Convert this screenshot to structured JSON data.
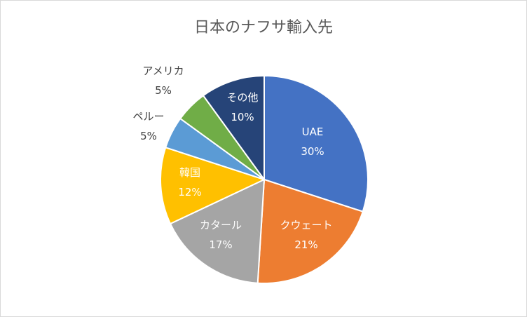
{
  "chart_data": {
    "type": "pie",
    "title": "日本のナフサ輸入先",
    "slices": [
      {
        "label": "UAE",
        "value": 30,
        "value_label": "30%",
        "color": "#4472C4"
      },
      {
        "label": "クウェート",
        "value": 21,
        "value_label": "21%",
        "color": "#ED7D31"
      },
      {
        "label": "カタール",
        "value": 17,
        "value_label": "17%",
        "color": "#A5A5A5"
      },
      {
        "label": "韓国",
        "value": 12,
        "value_label": "12%",
        "color": "#FFC000"
      },
      {
        "label": "ペルー",
        "value": 5,
        "value_label": "5%",
        "color": "#5B9BD5"
      },
      {
        "label": "アメリカ",
        "value": 5,
        "value_label": "5%",
        "color": "#70AD47"
      },
      {
        "label": "その他",
        "value": 10,
        "value_label": "10%",
        "color": "#264478"
      }
    ],
    "start_angle_deg": 0,
    "direction": "clockwise",
    "legend": "none"
  }
}
